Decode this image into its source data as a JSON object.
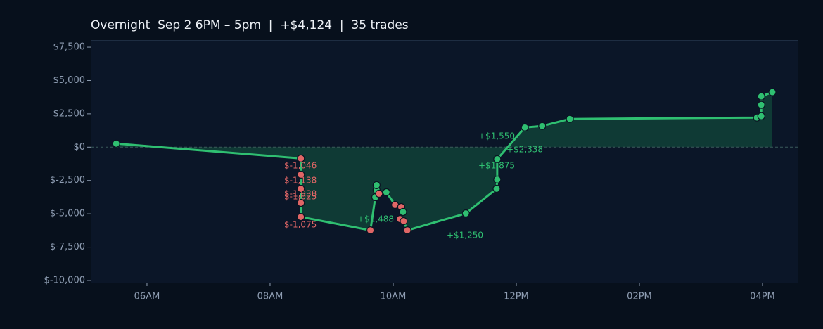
{
  "chart_data": {
    "type": "line",
    "title": "Overnight  Sep 2 6PM – 5pm  |  +$4,124  |  35 trades",
    "x": [
      5.5,
      8.5,
      8.5,
      8.5,
      8.5,
      8.5,
      9.63,
      9.71,
      9.73,
      9.73,
      9.77,
      9.89,
      10.03,
      10.13,
      10.16,
      10.11,
      10.17,
      10.23,
      11.18,
      11.68,
      11.69,
      11.69,
      12.14,
      12.42,
      12.87,
      15.91,
      15.98,
      15.98,
      15.98,
      16.16
    ],
    "series": [
      {
        "color": "#2fbf71",
        "values": [
          264,
          -846,
          -2061,
          -3118,
          -4175,
          -5233,
          -6237,
          -3753,
          -3224,
          -2854,
          -3488,
          -3383,
          -4334,
          -4493,
          -4863,
          -5391,
          -5550,
          -6237,
          -4968,
          -3118,
          -2431,
          -899,
          1480,
          1586,
          2114,
          2220,
          2326,
          3172,
          3805,
          4124
        ],
        "marker_colors": [
          "#2fbf71",
          "#e06666",
          "#e06666",
          "#e06666",
          "#e06666",
          "#e06666",
          "#e06666",
          "#2fbf71",
          "#2fbf71",
          "#2fbf71",
          "#e06666",
          "#2fbf71",
          "#e06666",
          "#e06666",
          "#2fbf71",
          "#e06666",
          "#e06666",
          "#e06666",
          "#2fbf71",
          "#2fbf71",
          "#2fbf71",
          "#2fbf71",
          "#2fbf71",
          "#2fbf71",
          "#2fbf71",
          "#2fbf71",
          "#2fbf71",
          "#2fbf71",
          "#2fbf71",
          "#2fbf71"
        ]
      }
    ],
    "area_color": "#0f3a35",
    "xlim": [
      5.086,
      16.583
    ],
    "xticks": [
      {
        "value": 6,
        "label": "06AM"
      },
      {
        "value": 8,
        "label": "08AM"
      },
      {
        "value": 10,
        "label": "10AM"
      },
      {
        "value": 12,
        "label": "12PM"
      },
      {
        "value": 14,
        "label": "02PM"
      },
      {
        "value": 16,
        "label": "04PM"
      }
    ],
    "ylim": [
      -10160,
      8030
    ],
    "yticks": [
      {
        "value": 7500,
        "label": "$7,500"
      },
      {
        "value": 5000,
        "label": "$5,000"
      },
      {
        "value": 2500,
        "label": "$2,500"
      },
      {
        "value": 0,
        "label": "$0"
      },
      {
        "value": -2500,
        "label": "$-2,500"
      },
      {
        "value": -5000,
        "label": "$-5,000"
      },
      {
        "value": -7500,
        "label": "$-7,500"
      },
      {
        "value": -10000,
        "label": "$-10,000"
      }
    ],
    "annotations": [
      {
        "text": "$-1,046",
        "color": "#e06666"
      },
      {
        "text": "$-1,138",
        "color": "#e06666"
      },
      {
        "text": "$-1,038",
        "color": "#e06666"
      },
      {
        "text": "$-1,025",
        "color": "#e06666"
      },
      {
        "text": "$-1,075",
        "color": "#e06666"
      },
      {
        "text": "+$1,488",
        "color": "#2fbf71"
      },
      {
        "text": "+$1,250",
        "color": "#2fbf71"
      },
      {
        "text": "+$1,550",
        "color": "#2fbf71"
      },
      {
        "text": "+$2,338",
        "color": "#2fbf71"
      },
      {
        "text": "+$1,875",
        "color": "#2fbf71"
      }
    ]
  }
}
